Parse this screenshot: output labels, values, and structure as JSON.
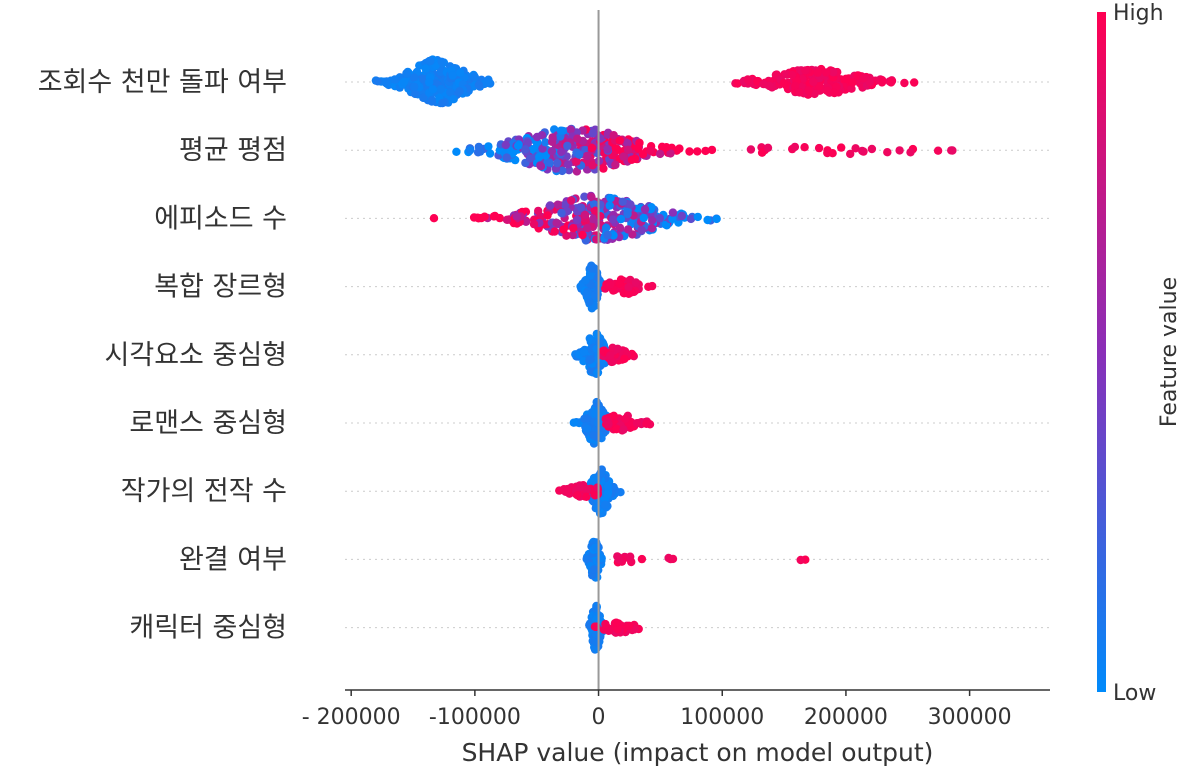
{
  "chart_data": {
    "type": "scatter",
    "subtype": "shap-beeswarm",
    "xlabel": "SHAP value (impact on model output)",
    "xlim": [
      -205000,
      365000
    ],
    "xticks": [
      -200000,
      -100000,
      0,
      100000,
      200000,
      300000
    ],
    "xtick_labels": [
      "- 200000",
      "-100000",
      "0",
      "100000",
      "200000",
      "300000"
    ],
    "colorbar": {
      "title": "Feature value",
      "high_label": "High",
      "low_label": "Low",
      "high_color": "#ff0052",
      "low_color": "#008bfb"
    },
    "zero_line": true,
    "features": [
      {
        "name": "조회수 천만 돌파 여부",
        "clusters": [
          {
            "center": -130000,
            "spread": 20000,
            "count": 240,
            "min": -183000,
            "max": -80000,
            "feature": "low",
            "height": 1.0
          },
          {
            "center": 175000,
            "spread": 30000,
            "count": 200,
            "min": 110000,
            "max": 275000,
            "feature": "high",
            "height": 0.55
          }
        ]
      },
      {
        "name": "평균 평점",
        "clusters": [
          {
            "center": -20000,
            "spread": 40000,
            "count": 330,
            "min": -120000,
            "max": 120000,
            "feature": "mixed",
            "height": 1.0
          },
          {
            "center": 180000,
            "spread": 70000,
            "count": 25,
            "min": 120000,
            "max": 340000,
            "feature": "high",
            "height": 0.15
          }
        ]
      },
      {
        "name": "에피소드 수",
        "clusters": [
          {
            "center": 0,
            "spread": 40000,
            "count": 300,
            "min": -178000,
            "max": 130000,
            "feature": "mixed-rev",
            "height": 1.0
          }
        ]
      },
      {
        "name": "복합 장르형",
        "clusters": [
          {
            "center": -5000,
            "spread": 4000,
            "count": 90,
            "min": -15000,
            "max": 5000,
            "feature": "low",
            "height": 1.0
          },
          {
            "center": 20000,
            "spread": 9000,
            "count": 45,
            "min": 5000,
            "max": 65000,
            "feature": "high",
            "height": 0.35
          }
        ]
      },
      {
        "name": "시각요소 중심형",
        "clusters": [
          {
            "center": -3000,
            "spread": 6000,
            "count": 100,
            "min": -22000,
            "max": 5000,
            "feature": "low",
            "height": 1.0
          },
          {
            "center": 12000,
            "spread": 8000,
            "count": 45,
            "min": 3000,
            "max": 45000,
            "feature": "high",
            "height": 0.3
          }
        ]
      },
      {
        "name": "로맨스 중심형",
        "clusters": [
          {
            "center": -2000,
            "spread": 6000,
            "count": 95,
            "min": -22000,
            "max": 8000,
            "feature": "low",
            "height": 1.0
          },
          {
            "center": 18000,
            "spread": 10000,
            "count": 50,
            "min": 5000,
            "max": 42000,
            "feature": "high",
            "height": 0.35
          }
        ]
      },
      {
        "name": "작가의 전작 수",
        "clusters": [
          {
            "center": 2000,
            "spread": 6000,
            "count": 110,
            "min": -10000,
            "max": 33000,
            "feature": "low",
            "height": 1.0
          },
          {
            "center": -12000,
            "spread": 10000,
            "count": 40,
            "min": -52000,
            "max": 0,
            "feature": "high",
            "height": 0.25
          }
        ]
      },
      {
        "name": "완결 여부",
        "clusters": [
          {
            "center": -3000,
            "spread": 3000,
            "count": 90,
            "min": -10000,
            "max": 3000,
            "feature": "low",
            "height": 1.0
          },
          {
            "center": 30000,
            "spread": 25000,
            "count": 16,
            "min": 15000,
            "max": 100000,
            "feature": "high",
            "height": 0.12
          },
          {
            "center": 165000,
            "spread": 5000,
            "count": 2,
            "min": 158000,
            "max": 172000,
            "feature": "high",
            "height": 0.02
          }
        ]
      },
      {
        "name": "캐릭터 중심형",
        "clusters": [
          {
            "center": -2000,
            "spread": 3000,
            "count": 100,
            "min": -8000,
            "max": 4000,
            "feature": "low",
            "height": 1.0
          },
          {
            "center": 15000,
            "spread": 12000,
            "count": 35,
            "min": -15000,
            "max": 65000,
            "feature": "high",
            "height": 0.2
          }
        ]
      }
    ]
  }
}
